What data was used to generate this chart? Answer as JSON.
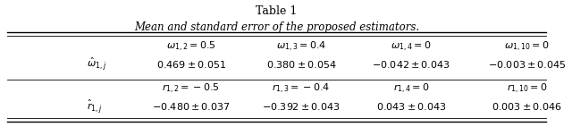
{
  "title": "Table 1",
  "subtitle": "Mean and standard error of the proposed estimators.",
  "col_headers_row1": [
    "$\\omega_{1,2} = 0.5$",
    "$\\omega_{1,3} = 0.4$",
    "$\\omega_{1,4} = 0$",
    "$\\omega_{1,10} = 0$"
  ],
  "col_headers_row2": [
    "$r_{1,2} = -0.5$",
    "$r_{1,3} = -0.4$",
    "$r_{1,4} = 0$",
    "$r_{1,10} = 0$"
  ],
  "row_label1": "$\\hat{\\omega}_{1,j}$",
  "row_label2": "$\\hat{r}_{1,j}$",
  "data_row1": [
    "$0.469 \\pm 0.051$",
    "$0.380 \\pm 0.054$",
    "$-0.042 \\pm 0.043$",
    "$-0.003\\pm 0.045$"
  ],
  "data_row2": [
    "$-0.480 \\pm 0.037$",
    "$-0.392 \\pm 0.043$",
    "$0.043 \\pm 0.043$",
    "$0.003 \\pm 0.046$"
  ],
  "bg_color": "#ffffff",
  "text_color": "#000000"
}
